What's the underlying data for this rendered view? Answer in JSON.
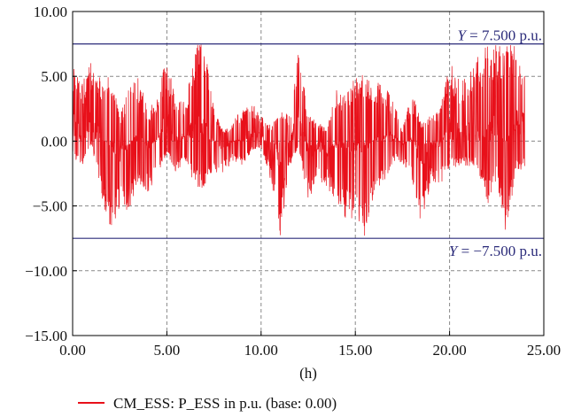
{
  "chart_data": {
    "type": "line",
    "title": "",
    "xlabel": "(h)",
    "ylabel": "",
    "xlim": [
      0,
      25
    ],
    "ylim": [
      -15,
      10
    ],
    "x_ticks": [
      "0.00",
      "5.00",
      "10.00",
      "15.00",
      "20.00",
      "25.00"
    ],
    "x_tick_values": [
      0,
      5,
      10,
      15,
      20,
      25
    ],
    "y_ticks": [
      "10.00",
      "5.00",
      "0.00",
      "−5.00",
      "−10.00",
      "−15.00"
    ],
    "y_tick_values": [
      10,
      5,
      0,
      -5,
      -10,
      -15
    ],
    "grid": true,
    "legend_position": "bottom-left",
    "series": [
      {
        "name": "CM_ESS: P_ESS in p.u. (base: 0.00)",
        "color": "#e8101a",
        "envelope_x": [
          0.0,
          0.5,
          1.0,
          1.5,
          2.0,
          2.5,
          3.0,
          3.5,
          4.0,
          4.5,
          5.0,
          5.5,
          6.0,
          6.5,
          7.0,
          7.5,
          8.0,
          8.5,
          9.0,
          9.5,
          10.0,
          10.5,
          11.0,
          11.5,
          12.0,
          12.5,
          13.0,
          13.5,
          14.0,
          14.5,
          15.0,
          15.5,
          16.0,
          16.5,
          17.0,
          17.5,
          18.0,
          18.5,
          19.0,
          19.5,
          20.0,
          20.5,
          21.0,
          21.5,
          22.0,
          22.5,
          23.0,
          23.5,
          24.0
        ],
        "envelope_max": [
          6.2,
          4.5,
          6.5,
          5.0,
          6.3,
          1.8,
          4.7,
          5.0,
          2.5,
          3.3,
          6.8,
          3.2,
          3.0,
          7.5,
          7.5,
          2.5,
          0.8,
          1.5,
          2.5,
          3.0,
          2.0,
          1.2,
          2.5,
          2.0,
          7.5,
          2.0,
          1.5,
          1.0,
          4.0,
          3.5,
          5.0,
          5.2,
          4.5,
          4.5,
          3.2,
          1.0,
          3.8,
          1.5,
          2.0,
          2.5,
          6.2,
          4.8,
          5.0,
          6.5,
          7.5,
          7.5,
          7.5,
          7.5,
          6.3
        ],
        "envelope_min": [
          -1.2,
          -2.0,
          -0.2,
          -4.0,
          -7.5,
          -5.0,
          -5.5,
          -3.3,
          -4.0,
          -2.5,
          -1.0,
          -2.5,
          -1.5,
          -3.5,
          -4.0,
          -2.5,
          -2.5,
          -1.6,
          -2.0,
          -0.8,
          -0.5,
          -3.0,
          -7.5,
          -2.0,
          -0.4,
          -5.0,
          -3.0,
          -3.5,
          -5.0,
          -6.0,
          -6.5,
          -7.5,
          -4.0,
          -3.5,
          -1.5,
          -1.8,
          -3.2,
          -7.5,
          -3.0,
          -3.5,
          -2.0,
          -2.0,
          -2.0,
          -2.2,
          -5.0,
          -3.0,
          -7.5,
          -2.5,
          -2.0
        ]
      }
    ],
    "reference_lines": [
      {
        "value": 7.5,
        "label_prefix": "Y",
        "label_rest": " = 7.500 p.u."
      },
      {
        "value": -7.5,
        "label_prefix": "Y",
        "label_rest": " = −7.500 p.u."
      }
    ]
  },
  "legend": {
    "label": "CM_ESS: P_ESS in p.u. (base: 0.00)"
  }
}
